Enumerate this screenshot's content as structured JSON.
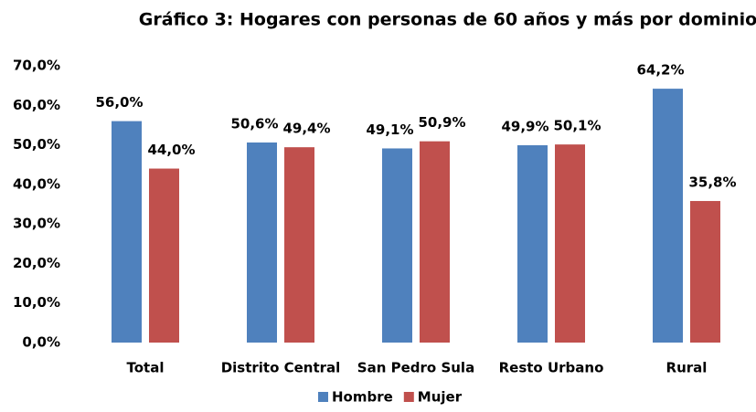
{
  "chart_data": {
    "type": "bar",
    "title": "Gráfico 3: Hogares con personas de 60 años y más por dominio",
    "categories": [
      "Total",
      "Distrito Central",
      "San Pedro Sula",
      "Resto Urbano",
      "Rural"
    ],
    "series": [
      {
        "name": "Hombre",
        "color": "#4f81bd",
        "values": [
          56.0,
          50.6,
          49.1,
          49.9,
          64.2
        ],
        "value_labels": [
          "56,0%",
          "50,6%",
          "49,1%",
          "49,9%",
          "64,2%"
        ]
      },
      {
        "name": "Mujer",
        "color": "#c0504d",
        "values": [
          44.0,
          49.4,
          50.9,
          50.1,
          35.8
        ],
        "value_labels": [
          "44,0%",
          "49,4%",
          "50,9%",
          "50,1%",
          "35,8%"
        ]
      }
    ],
    "ylim": [
      0,
      70
    ],
    "yticks": [
      {
        "value": 0,
        "label": "0,0%"
      },
      {
        "value": 10,
        "label": "10,0%"
      },
      {
        "value": 20,
        "label": "20,0%"
      },
      {
        "value": 30,
        "label": "30,0%"
      },
      {
        "value": 40,
        "label": "40,0%"
      },
      {
        "value": 50,
        "label": "50,0%"
      },
      {
        "value": 60,
        "label": "60,0%"
      },
      {
        "value": 70,
        "label": "70,0%"
      }
    ],
    "grid": false,
    "legend": "bottom"
  }
}
